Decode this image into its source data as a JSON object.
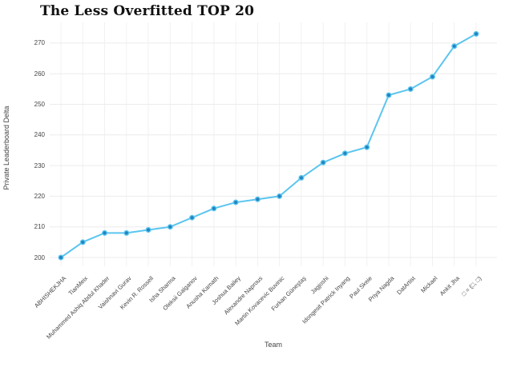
{
  "chart_data": {
    "type": "line",
    "title": "The Less Overfitted TOP 20",
    "xlabel": "Team",
    "ylabel": "Private Leaderboard Delta",
    "categories": [
      "ABHISHEKJHA",
      "TianMeix",
      "Muhammed Ashiq Abdul Khader",
      "Vaishnavi Gurav",
      "Kevin R. Rossell",
      "Isha Sharma",
      "Oleksii Galganov",
      "Anusha Kamath",
      "Joshua Bailey",
      "Alexandre Naprous",
      "Martin Kovacevic Buvinic",
      "Furkan Güneştaş",
      "Jagjoshi",
      "Idongesit Patrick Inyang",
      "Paul Skeie",
      "Priya Nagda",
      "DatArtist",
      "Mickael",
      "Ankit Jha",
      "□ = (□, □)"
    ],
    "values": [
      200,
      205,
      208,
      208,
      209,
      210,
      213,
      216,
      218,
      219,
      220,
      226,
      231,
      234,
      236,
      253,
      255,
      259,
      269,
      273
    ],
    "yticks": [
      200,
      210,
      220,
      230,
      240,
      250,
      260,
      270
    ],
    "ylim": [
      197,
      277.5
    ],
    "grid": true,
    "legend_position": "none",
    "line_color": "#5bc5ef",
    "marker_fill_color": "#2283bf",
    "grid_color": "#ececec",
    "vgrid_color": "#f1f1f1",
    "tick_label_color": "#444444",
    "title_color": "#111111",
    "background_color": "#ffffff"
  }
}
